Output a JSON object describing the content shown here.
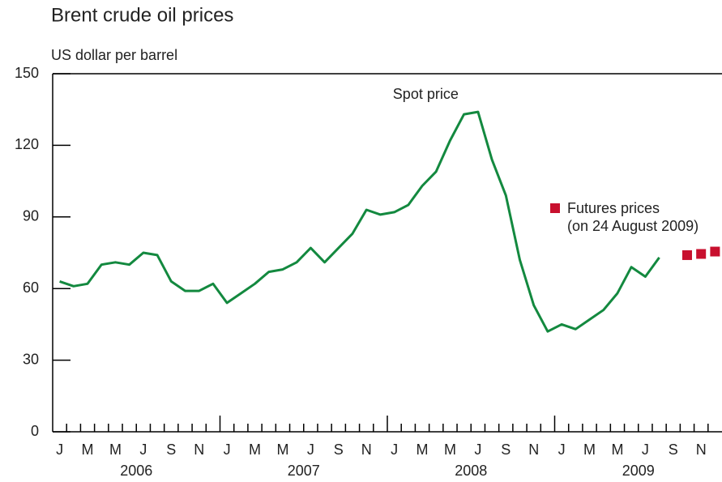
{
  "chart_data": {
    "type": "line",
    "title": "Brent crude oil prices",
    "y_label": "US dollar per barrel",
    "xlim": [
      "2006-01",
      "2009-12"
    ],
    "xticks": [
      {
        "value": "2006-01",
        "label": "J"
      },
      {
        "value": "2006-03",
        "label": "M"
      },
      {
        "value": "2006-05",
        "label": "M"
      },
      {
        "value": "2006-07",
        "label": "J"
      },
      {
        "value": "2006-09",
        "label": "S"
      },
      {
        "value": "2006-11",
        "label": "N"
      },
      {
        "value": "2007-01",
        "label": "J"
      },
      {
        "value": "2007-03",
        "label": "M"
      },
      {
        "value": "2007-05",
        "label": "M"
      },
      {
        "value": "2007-07",
        "label": "J"
      },
      {
        "value": "2007-09",
        "label": "S"
      },
      {
        "value": "2007-11",
        "label": "N"
      },
      {
        "value": "2008-01",
        "label": "J"
      },
      {
        "value": "2008-03",
        "label": "M"
      },
      {
        "value": "2008-05",
        "label": "M"
      },
      {
        "value": "2008-07",
        "label": "J"
      },
      {
        "value": "2008-09",
        "label": "S"
      },
      {
        "value": "2008-11",
        "label": "N"
      },
      {
        "value": "2009-01",
        "label": "J"
      },
      {
        "value": "2009-03",
        "label": "M"
      },
      {
        "value": "2009-05",
        "label": "M"
      },
      {
        "value": "2009-07",
        "label": "J"
      },
      {
        "value": "2009-09",
        "label": "S"
      },
      {
        "value": "2009-11",
        "label": "N"
      }
    ],
    "years": [
      "2006",
      "2007",
      "2008",
      "2009"
    ],
    "ylim": [
      0,
      150
    ],
    "yticks": [
      0,
      30,
      60,
      90,
      120,
      150
    ],
    "grid": false,
    "series": [
      {
        "name": "Spot price",
        "color": "#13893f",
        "mark": "line",
        "x": [
          "2006-01",
          "2006-02",
          "2006-03",
          "2006-04",
          "2006-05",
          "2006-06",
          "2006-07",
          "2006-08",
          "2006-09",
          "2006-10",
          "2006-11",
          "2006-12",
          "2007-01",
          "2007-02",
          "2007-03",
          "2007-04",
          "2007-05",
          "2007-06",
          "2007-07",
          "2007-08",
          "2007-09",
          "2007-10",
          "2007-11",
          "2007-12",
          "2008-01",
          "2008-02",
          "2008-03",
          "2008-04",
          "2008-05",
          "2008-06",
          "2008-07",
          "2008-08",
          "2008-09",
          "2008-10",
          "2008-11",
          "2008-12",
          "2009-01",
          "2009-02",
          "2009-03",
          "2009-04",
          "2009-05",
          "2009-06",
          "2009-07",
          "2009-08"
        ],
        "values": [
          63,
          61,
          62,
          70,
          71,
          70,
          75,
          74,
          63,
          59,
          59,
          62,
          54,
          58,
          62,
          67,
          68,
          71,
          77,
          71,
          77,
          83,
          93,
          91,
          92,
          95,
          103,
          109,
          122,
          133,
          134,
          114,
          99,
          72,
          53,
          42,
          45,
          43,
          47,
          51,
          58,
          69,
          65,
          73
        ]
      },
      {
        "name": "Futures prices",
        "note": "(on 24 August 2009)",
        "color": "#c8102e",
        "mark": "square",
        "x": [
          "2009-10",
          "2009-11",
          "2009-12"
        ],
        "values": [
          74,
          74.5,
          75.5
        ]
      }
    ]
  }
}
